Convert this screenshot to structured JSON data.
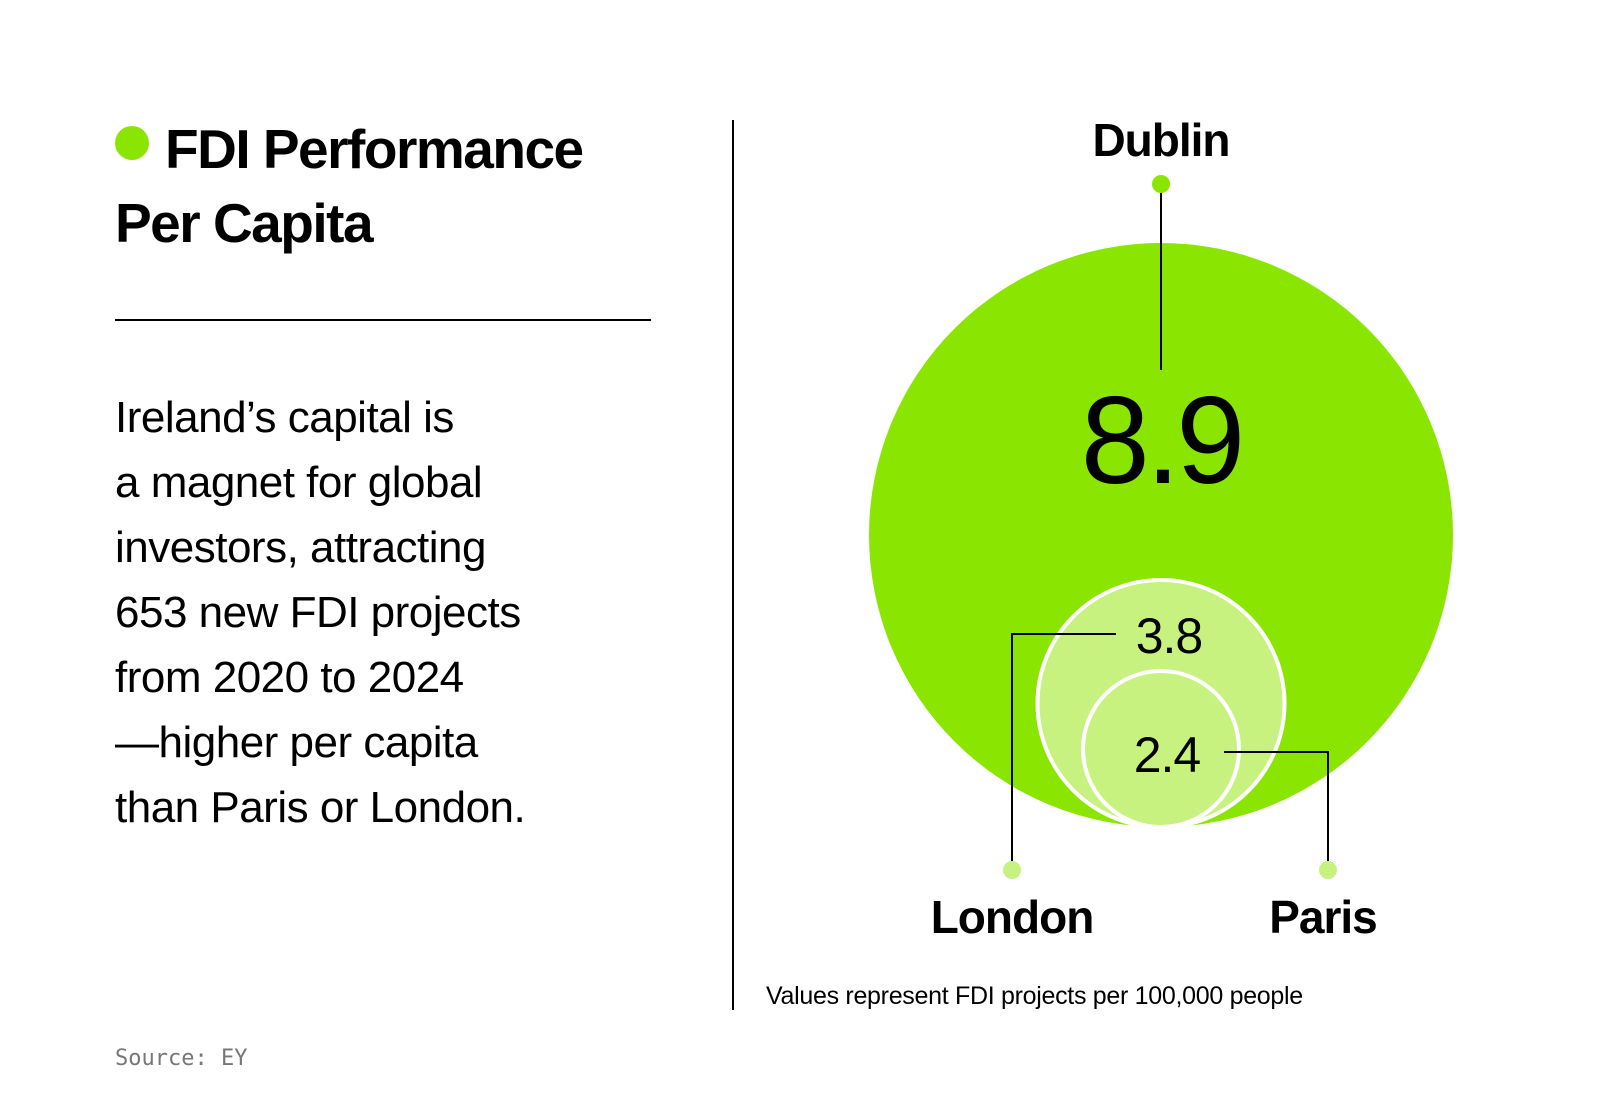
{
  "title": {
    "line1": "FDI Performance",
    "line2": "Per Capita"
  },
  "body": {
    "lines": [
      "Ireland’s capital is",
      "a magnet for global",
      "investors, attracting",
      "653 new FDI projects",
      "from 2020 to 2024",
      "—higher per capita",
      "than Paris or London."
    ]
  },
  "source": "Source: EY",
  "colors": {
    "accent": "#8ae600",
    "light_accent": "#c8f27f",
    "text": "#000000",
    "muted": "#777777"
  },
  "chart_data": {
    "type": "bubble",
    "title": "FDI Performance Per Capita",
    "unit_note": "Values represent FDI projects per 100,000 people",
    "series": [
      {
        "name": "Dublin",
        "value": 8.9,
        "label": "8.9"
      },
      {
        "name": "London",
        "value": 3.8,
        "label": "3.8"
      },
      {
        "name": "Paris",
        "value": 2.4,
        "label": "2.4"
      }
    ]
  }
}
